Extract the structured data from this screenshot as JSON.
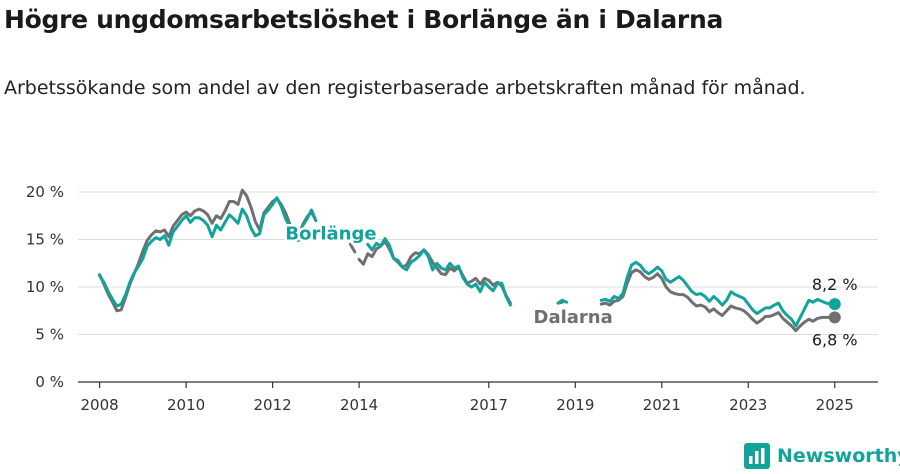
{
  "title": "Högre ungdomsarbetslöshet i Borlänge än i Dalarna",
  "subtitle": "Arbetssökande som andel av den registerbaserade arbetskraften månad för månad.",
  "brand": {
    "name": "Newsworthy"
  },
  "colors": {
    "borlange": "#12a39a",
    "dalarna": "#707070",
    "grid": "#dddddd",
    "axis": "#333333"
  },
  "chart_data": {
    "type": "line",
    "title": "Högre ungdomsarbetslöshet i Borlänge än i Dalarna",
    "subtitle": "Arbetssökande som andel av den registerbaserade arbetskraften månad för månad.",
    "ylim": [
      0,
      20
    ],
    "y_ticks": [
      0,
      5,
      10,
      15,
      20
    ],
    "y_tick_labels": [
      "0 %",
      "5 %",
      "10 %",
      "15 %",
      "20 %"
    ],
    "x_ticks": [
      2008,
      2010,
      2012,
      2014,
      2017,
      2019,
      2021,
      2023,
      2025
    ],
    "x_tick_labels": [
      "2008",
      "2010",
      "2012",
      "2014",
      "2017",
      "2019",
      "2021",
      "2023",
      "2025"
    ],
    "grid": true,
    "series": [
      {
        "name": "Borlänge",
        "color": "#12a39a",
        "end_label": "8,2 %",
        "points": [
          [
            2008.0,
            11.2
          ],
          [
            2008.1,
            10.5
          ],
          [
            2008.2,
            9.5
          ],
          [
            2008.3,
            8.7
          ],
          [
            2008.4,
            8.0
          ],
          [
            2008.5,
            8.2
          ],
          [
            2008.6,
            9.2
          ],
          [
            2008.7,
            10.5
          ],
          [
            2008.8,
            11.5
          ],
          [
            2008.9,
            12.2
          ],
          [
            2009.0,
            13.0
          ],
          [
            2009.1,
            14.3
          ],
          [
            2009.2,
            14.8
          ],
          [
            2009.3,
            15.2
          ],
          [
            2009.4,
            15.0
          ],
          [
            2009.5,
            15.4
          ],
          [
            2009.6,
            14.4
          ],
          [
            2009.7,
            15.8
          ],
          [
            2009.8,
            16.4
          ],
          [
            2009.9,
            17.0
          ],
          [
            2010.0,
            17.5
          ],
          [
            2010.1,
            16.8
          ],
          [
            2010.2,
            17.3
          ],
          [
            2010.3,
            17.3
          ],
          [
            2010.4,
            17.0
          ],
          [
            2010.5,
            16.5
          ],
          [
            2010.6,
            15.3
          ],
          [
            2010.7,
            16.5
          ],
          [
            2010.8,
            16.0
          ],
          [
            2010.9,
            16.8
          ],
          [
            2011.0,
            17.6
          ],
          [
            2011.1,
            17.2
          ],
          [
            2011.2,
            16.7
          ],
          [
            2011.3,
            18.2
          ],
          [
            2011.4,
            17.5
          ],
          [
            2011.5,
            16.2
          ],
          [
            2011.6,
            15.4
          ],
          [
            2011.7,
            15.6
          ],
          [
            2011.8,
            17.6
          ],
          [
            2011.9,
            18.1
          ],
          [
            2012.0,
            18.7
          ],
          [
            2012.1,
            19.4
          ],
          [
            2012.2,
            18.5
          ],
          [
            2012.3,
            17.2
          ],
          [
            2012.4,
            16.3
          ],
          [
            2012.5,
            15.0
          ],
          [
            2012.6,
            14.9
          ],
          [
            2012.7,
            16.5
          ],
          [
            2012.8,
            17.2
          ],
          [
            2012.9,
            18.1
          ],
          [
            2013.0,
            17.0
          ],
          null,
          [
            2014.2,
            14.5
          ],
          [
            2014.3,
            13.9
          ],
          [
            2014.4,
            14.6
          ],
          [
            2014.5,
            14.3
          ],
          [
            2014.6,
            15.1
          ],
          [
            2014.7,
            14.4
          ],
          [
            2014.8,
            13.0
          ],
          [
            2014.9,
            12.8
          ],
          [
            2015.0,
            12.1
          ],
          [
            2015.1,
            11.8
          ],
          [
            2015.2,
            12.6
          ],
          [
            2015.3,
            12.9
          ],
          [
            2015.4,
            13.3
          ],
          [
            2015.5,
            13.9
          ],
          [
            2015.6,
            13.2
          ],
          [
            2015.7,
            11.8
          ],
          [
            2015.8,
            12.5
          ],
          [
            2015.9,
            12.0
          ],
          [
            2016.0,
            11.8
          ],
          [
            2016.1,
            12.5
          ],
          [
            2016.2,
            12.0
          ],
          [
            2016.3,
            12.2
          ],
          [
            2016.4,
            11.0
          ],
          [
            2016.5,
            10.3
          ],
          [
            2016.6,
            10.0
          ],
          [
            2016.7,
            10.3
          ],
          [
            2016.8,
            9.5
          ],
          [
            2016.9,
            10.5
          ],
          [
            2017.0,
            10.0
          ],
          [
            2017.1,
            9.6
          ],
          [
            2017.2,
            10.4
          ],
          [
            2017.3,
            10.4
          ],
          [
            2017.4,
            9.0
          ],
          [
            2017.5,
            8.1
          ],
          null,
          [
            2018.6,
            8.3
          ],
          [
            2018.7,
            8.6
          ],
          [
            2018.8,
            8.4
          ],
          null,
          [
            2019.6,
            8.6
          ],
          [
            2019.7,
            8.7
          ],
          [
            2019.8,
            8.5
          ],
          [
            2019.9,
            9.0
          ],
          [
            2020.0,
            8.8
          ],
          [
            2020.1,
            9.3
          ],
          [
            2020.2,
            11.0
          ],
          [
            2020.3,
            12.3
          ],
          [
            2020.4,
            12.6
          ],
          [
            2020.5,
            12.3
          ],
          [
            2020.6,
            11.7
          ],
          [
            2020.7,
            11.4
          ],
          [
            2020.8,
            11.7
          ],
          [
            2020.9,
            12.1
          ],
          [
            2021.0,
            11.7
          ],
          [
            2021.1,
            10.8
          ],
          [
            2021.2,
            10.5
          ],
          [
            2021.3,
            10.8
          ],
          [
            2021.4,
            11.1
          ],
          [
            2021.5,
            10.7
          ],
          [
            2021.6,
            10.1
          ],
          [
            2021.7,
            9.5
          ],
          [
            2021.8,
            9.2
          ],
          [
            2021.9,
            9.3
          ],
          [
            2022.0,
            9.0
          ],
          [
            2022.1,
            8.5
          ],
          [
            2022.2,
            9.0
          ],
          [
            2022.3,
            8.6
          ],
          [
            2022.4,
            8.1
          ],
          [
            2022.5,
            8.6
          ],
          [
            2022.6,
            9.5
          ],
          [
            2022.7,
            9.2
          ],
          [
            2022.8,
            9.0
          ],
          [
            2022.9,
            8.8
          ],
          [
            2023.0,
            8.2
          ],
          [
            2023.1,
            7.6
          ],
          [
            2023.2,
            7.2
          ],
          [
            2023.3,
            7.5
          ],
          [
            2023.4,
            7.8
          ],
          [
            2023.5,
            7.8
          ],
          [
            2023.6,
            8.1
          ],
          [
            2023.7,
            8.3
          ],
          [
            2023.8,
            7.5
          ],
          [
            2023.9,
            7.0
          ],
          [
            2024.0,
            6.6
          ],
          [
            2024.1,
            5.9
          ],
          [
            2024.2,
            6.8
          ],
          [
            2024.3,
            7.7
          ],
          [
            2024.4,
            8.6
          ],
          [
            2024.5,
            8.4
          ],
          [
            2024.6,
            8.7
          ],
          [
            2024.7,
            8.5
          ],
          [
            2024.8,
            8.3
          ],
          [
            2024.9,
            8.2
          ],
          [
            2025.0,
            8.2
          ]
        ]
      },
      {
        "name": "Dalarna",
        "color": "#707070",
        "end_label": "6,8 %",
        "points": [
          [
            2008.0,
            11.3
          ],
          [
            2008.1,
            10.3
          ],
          [
            2008.2,
            9.2
          ],
          [
            2008.3,
            8.4
          ],
          [
            2008.4,
            7.5
          ],
          [
            2008.5,
            7.6
          ],
          [
            2008.6,
            8.9
          ],
          [
            2008.7,
            10.3
          ],
          [
            2008.8,
            11.4
          ],
          [
            2008.9,
            12.5
          ],
          [
            2009.0,
            13.8
          ],
          [
            2009.1,
            14.9
          ],
          [
            2009.2,
            15.5
          ],
          [
            2009.3,
            15.9
          ],
          [
            2009.4,
            15.8
          ],
          [
            2009.5,
            16.0
          ],
          [
            2009.6,
            15.3
          ],
          [
            2009.7,
            16.4
          ],
          [
            2009.8,
            17.0
          ],
          [
            2009.9,
            17.6
          ],
          [
            2010.0,
            17.9
          ],
          [
            2010.1,
            17.5
          ],
          [
            2010.2,
            18.0
          ],
          [
            2010.3,
            18.2
          ],
          [
            2010.4,
            18.0
          ],
          [
            2010.5,
            17.6
          ],
          [
            2010.6,
            16.7
          ],
          [
            2010.7,
            17.5
          ],
          [
            2010.8,
            17.2
          ],
          [
            2010.9,
            18.0
          ],
          [
            2011.0,
            19.0
          ],
          [
            2011.1,
            19.0
          ],
          [
            2011.2,
            18.7
          ],
          [
            2011.3,
            20.2
          ],
          [
            2011.4,
            19.6
          ],
          [
            2011.5,
            18.4
          ],
          [
            2011.6,
            16.9
          ],
          [
            2011.7,
            16.0
          ],
          [
            2011.8,
            17.8
          ],
          [
            2011.9,
            18.4
          ],
          [
            2012.0,
            19.0
          ],
          [
            2012.1,
            19.3
          ],
          [
            2012.2,
            18.7
          ],
          [
            2012.3,
            17.8
          ],
          [
            2012.4,
            16.6
          ],
          [
            2012.5,
            15.5
          ],
          [
            2012.6,
            15.4
          ],
          [
            2012.7,
            16.6
          ],
          [
            2012.8,
            17.4
          ],
          [
            2012.9,
            17.9
          ],
          [
            2013.0,
            17.0
          ],
          null,
          [
            2013.8,
            14.5
          ],
          [
            2013.9,
            13.7
          ],
          null,
          [
            2014.0,
            12.9
          ],
          [
            2014.1,
            12.4
          ],
          [
            2014.2,
            13.5
          ],
          [
            2014.3,
            13.2
          ],
          [
            2014.4,
            14.0
          ],
          [
            2014.5,
            14.3
          ],
          [
            2014.6,
            14.8
          ],
          [
            2014.7,
            14.0
          ],
          [
            2014.8,
            13.0
          ],
          [
            2014.9,
            12.6
          ],
          [
            2015.0,
            12.1
          ],
          [
            2015.1,
            12.3
          ],
          [
            2015.2,
            13.2
          ],
          [
            2015.3,
            13.6
          ],
          [
            2015.4,
            13.5
          ],
          [
            2015.5,
            13.9
          ],
          [
            2015.6,
            13.4
          ],
          [
            2015.7,
            12.6
          ],
          [
            2015.8,
            12.0
          ],
          [
            2015.9,
            11.4
          ],
          [
            2016.0,
            11.3
          ],
          [
            2016.1,
            12.0
          ],
          [
            2016.2,
            11.7
          ],
          [
            2016.3,
            12.1
          ],
          [
            2016.4,
            11.2
          ],
          [
            2016.5,
            10.4
          ],
          [
            2016.6,
            10.6
          ],
          [
            2016.7,
            10.9
          ],
          [
            2016.8,
            10.3
          ],
          [
            2016.9,
            10.9
          ],
          [
            2017.0,
            10.7
          ],
          [
            2017.1,
            10.2
          ],
          [
            2017.2,
            10.5
          ],
          [
            2017.3,
            10.1
          ],
          [
            2017.4,
            9.1
          ],
          [
            2017.5,
            8.3
          ],
          null,
          [
            2018.6,
            8.3
          ],
          [
            2018.7,
            8.4
          ],
          null,
          [
            2019.6,
            8.2
          ],
          [
            2019.7,
            8.3
          ],
          [
            2019.8,
            8.1
          ],
          [
            2019.9,
            8.5
          ],
          [
            2020.0,
            8.6
          ],
          [
            2020.1,
            9.0
          ],
          [
            2020.2,
            10.4
          ],
          [
            2020.3,
            11.5
          ],
          [
            2020.4,
            11.8
          ],
          [
            2020.5,
            11.6
          ],
          [
            2020.6,
            11.1
          ],
          [
            2020.7,
            10.8
          ],
          [
            2020.8,
            11.0
          ],
          [
            2020.9,
            11.4
          ],
          [
            2021.0,
            10.9
          ],
          [
            2021.1,
            10.0
          ],
          [
            2021.2,
            9.5
          ],
          [
            2021.3,
            9.3
          ],
          [
            2021.4,
            9.2
          ],
          [
            2021.5,
            9.2
          ],
          [
            2021.6,
            8.9
          ],
          [
            2021.7,
            8.4
          ],
          [
            2021.8,
            8.0
          ],
          [
            2021.9,
            8.1
          ],
          [
            2022.0,
            7.9
          ],
          [
            2022.1,
            7.4
          ],
          [
            2022.2,
            7.7
          ],
          [
            2022.3,
            7.3
          ],
          [
            2022.4,
            7.0
          ],
          [
            2022.5,
            7.5
          ],
          [
            2022.6,
            8.0
          ],
          [
            2022.7,
            7.8
          ],
          [
            2022.8,
            7.7
          ],
          [
            2022.9,
            7.5
          ],
          [
            2023.0,
            7.1
          ],
          [
            2023.1,
            6.6
          ],
          [
            2023.2,
            6.2
          ],
          [
            2023.3,
            6.5
          ],
          [
            2023.4,
            6.9
          ],
          [
            2023.5,
            6.9
          ],
          [
            2023.6,
            7.1
          ],
          [
            2023.7,
            7.3
          ],
          [
            2023.8,
            6.7
          ],
          [
            2023.9,
            6.3
          ],
          [
            2024.0,
            5.9
          ],
          [
            2024.1,
            5.4
          ],
          [
            2024.2,
            5.9
          ],
          [
            2024.3,
            6.3
          ],
          [
            2024.4,
            6.6
          ],
          [
            2024.5,
            6.4
          ],
          [
            2024.6,
            6.7
          ],
          [
            2024.7,
            6.8
          ],
          [
            2024.8,
            6.8
          ],
          [
            2024.9,
            6.8
          ],
          [
            2025.0,
            6.8
          ]
        ]
      }
    ]
  }
}
